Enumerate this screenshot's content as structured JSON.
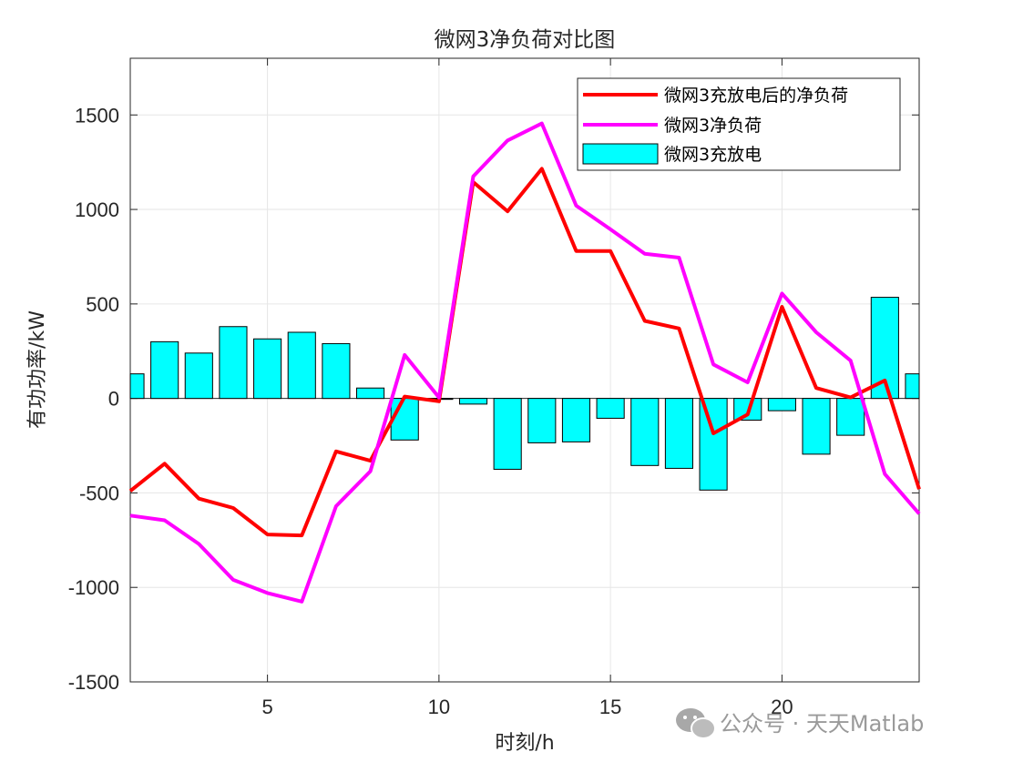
{
  "chart_data": {
    "type": "bar+line",
    "title": "微网3净负荷对比图",
    "xlabel": "时刻/h",
    "ylabel": "有功功率/kW",
    "xlim": [
      1,
      24
    ],
    "ylim": [
      -1500,
      1800
    ],
    "xticks": [
      5,
      10,
      15,
      20
    ],
    "yticks": [
      -1500,
      -1000,
      -500,
      0,
      500,
      1000,
      1500
    ],
    "grid": true,
    "legend_position": "top-right",
    "x": [
      1,
      2,
      3,
      4,
      5,
      6,
      7,
      8,
      9,
      10,
      11,
      12,
      13,
      14,
      15,
      16,
      17,
      18,
      19,
      20,
      21,
      22,
      23,
      24
    ],
    "bars": {
      "name": "微网3充放电",
      "color": "#00FFFF",
      "values": [
        130,
        300,
        240,
        380,
        315,
        350,
        290,
        55,
        -220,
        -5,
        -30,
        -375,
        -235,
        -230,
        -105,
        -355,
        -370,
        -485,
        -115,
        -65,
        -295,
        -195,
        535,
        130
      ]
    },
    "series": [
      {
        "name": "微网3充放电后的净负荷",
        "color": "#FF0000",
        "values": [
          -490,
          -345,
          -530,
          -580,
          -720,
          -725,
          -280,
          -330,
          10,
          -15,
          1145,
          990,
          1215,
          780,
          780,
          410,
          370,
          -185,
          -85,
          485,
          55,
          5,
          95,
          -480
        ]
      },
      {
        "name": "微网3净负荷",
        "color": "#FF00FF",
        "values": [
          -620,
          -645,
          -770,
          -960,
          -1030,
          -1075,
          -570,
          -385,
          230,
          5,
          1175,
          1365,
          1455,
          1020,
          895,
          765,
          745,
          180,
          85,
          555,
          350,
          200,
          -400,
          -610
        ]
      }
    ]
  },
  "watermark": {
    "text": "公众号 · 天天Matlab",
    "icon": "wechat-icon"
  }
}
